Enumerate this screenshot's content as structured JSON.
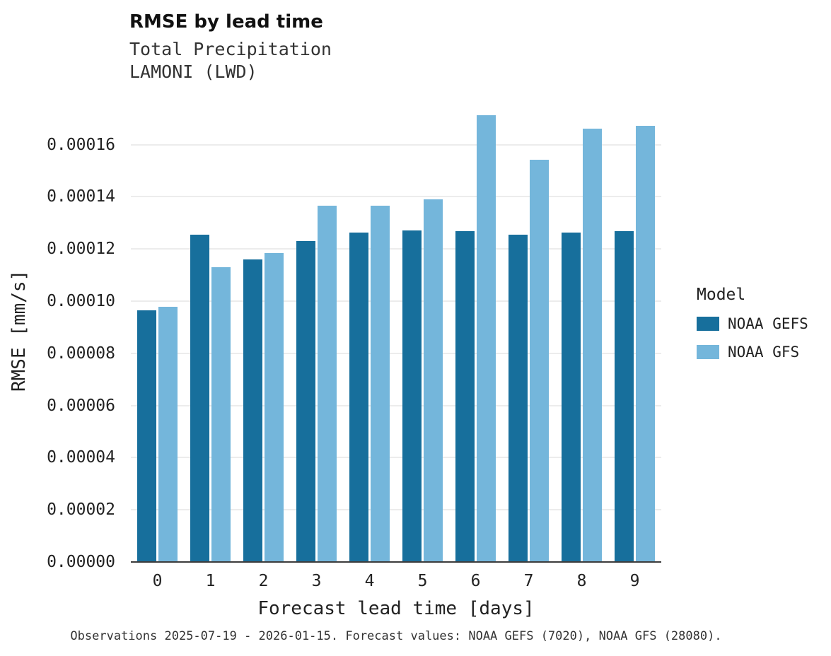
{
  "chart": {
    "title": "RMSE by lead time",
    "subtitle1": "Total Precipitation",
    "subtitle2": "LAMONI (LWD)",
    "caption": "Observations 2025-07-19 - 2026-01-15. Forecast values: NOAA GEFS (7020), NOAA GFS (28080)."
  },
  "chart_data": {
    "type": "bar",
    "title": "RMSE by lead time",
    "subtitle": "Total Precipitation, LAMONI (LWD)",
    "xlabel": "Forecast lead time [days]",
    "ylabel": "RMSE [mm/s]",
    "categories": [
      "0",
      "1",
      "2",
      "3",
      "4",
      "5",
      "6",
      "7",
      "8",
      "9"
    ],
    "series": [
      {
        "name": "NOAA GEFS",
        "color": "#176F9C",
        "values": [
          9.65e-05,
          0.0001255,
          0.0001161,
          0.0001231,
          0.0001263,
          0.0001272,
          0.0001269,
          0.0001256,
          0.0001263,
          0.0001268
        ]
      },
      {
        "name": "NOAA GFS",
        "color": "#74B6DB",
        "values": [
          9.78e-05,
          0.0001131,
          0.0001184,
          0.0001366,
          0.0001366,
          0.0001391,
          0.0001714,
          0.0001543,
          0.0001661,
          0.0001673
        ]
      }
    ],
    "ylim": [
      0,
      0.0001775
    ],
    "yticks": [
      0,
      2e-05,
      4e-05,
      6e-05,
      8e-05,
      0.0001,
      0.00012,
      0.00014,
      0.00016
    ],
    "ytick_decimals": 5,
    "legend_title": "Model",
    "legend_position": "right",
    "grid": "horizontal"
  }
}
